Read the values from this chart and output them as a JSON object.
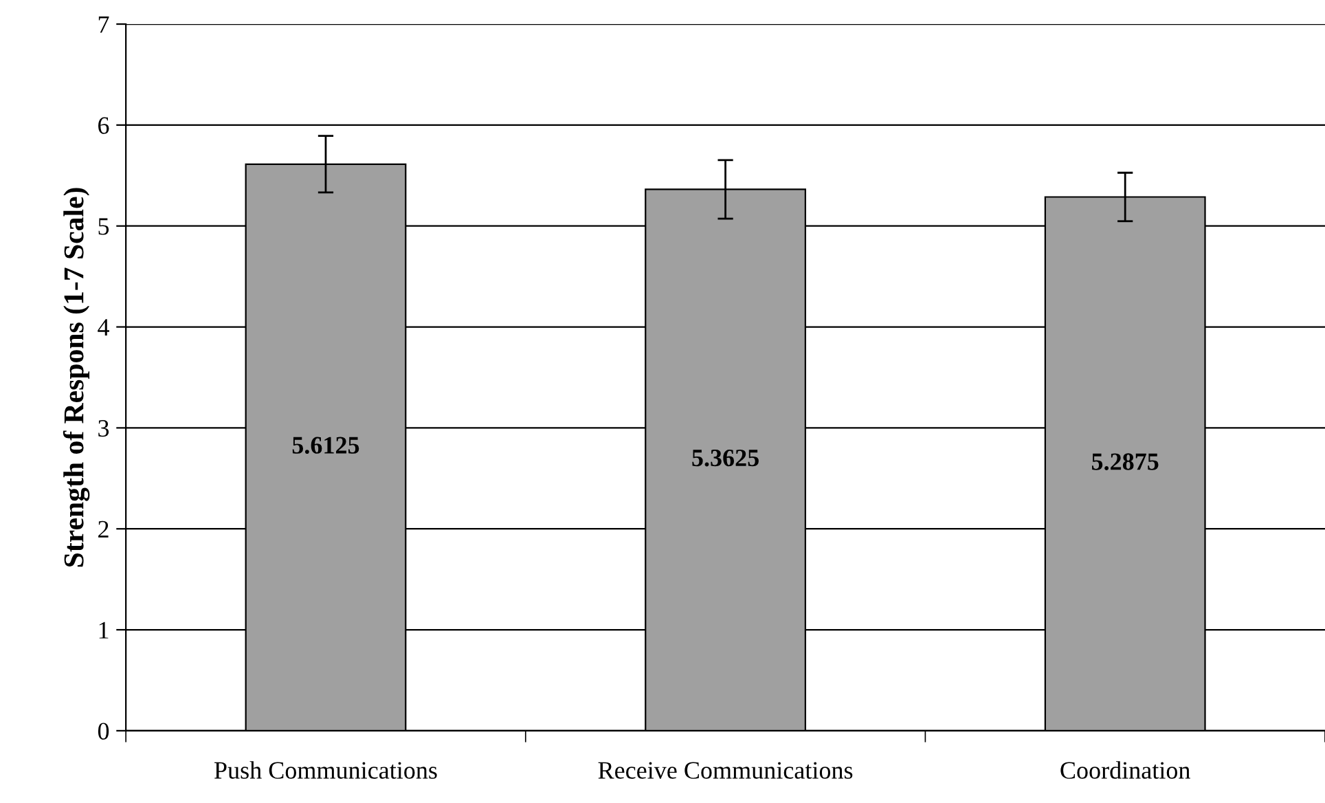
{
  "chart_data": {
    "type": "bar",
    "ylabel": "Strength of Respons (1-7 Scale)",
    "categories": [
      "Push Communications",
      "Receive Communications",
      "Coordination"
    ],
    "values": [
      5.6125,
      5.3625,
      5.2875
    ],
    "errors": [
      0.28,
      0.29,
      0.24
    ],
    "color": "#a0a0a0",
    "data_labels": true,
    "ylim": [
      0,
      7
    ],
    "yticks": [
      0,
      1,
      2,
      3,
      4,
      5,
      6,
      7
    ],
    "grid": "y",
    "legend": false
  }
}
